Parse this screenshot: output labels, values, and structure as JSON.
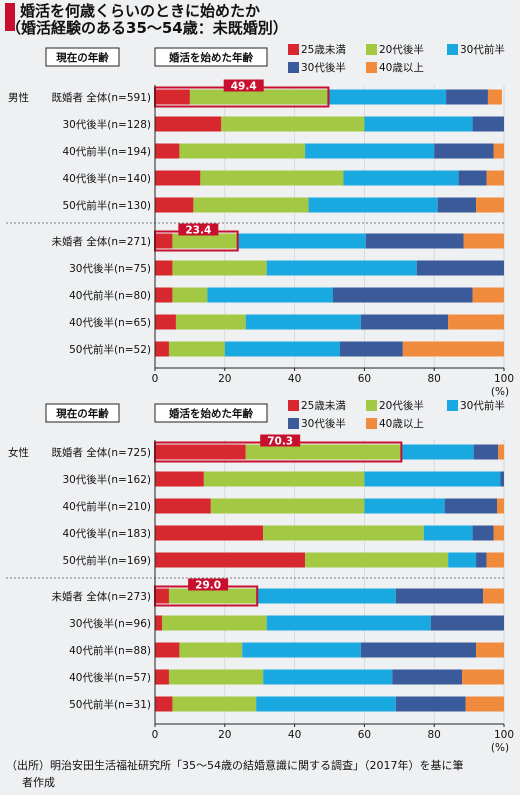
{
  "title_line1": "婚活を何歳くらいのときに始めたか",
  "title_line2": "（婚活経験のある35〜54歳：未既婚別）",
  "box_current_age": "現在の年齢",
  "box_start_age": "婚活を始めた年齢",
  "percent_unit": "(%)",
  "source_line1": "（出所）明治安田生活福祉研究所「35〜54歳の結婚意識に関する調査」（2017年）を基に筆",
  "source_line2": "者作成",
  "colors": {
    "title_marker": "#c8102e",
    "s25": "#d7282f",
    "s20s": "#a3c944",
    "s30early": "#1aa8e0",
    "s30late": "#3b5a9a",
    "s40": "#f08a3c",
    "callout_border": "#c8102e",
    "callout_fill": "#c8102e"
  },
  "chart_data": [
    {
      "type": "bar",
      "orientation": "horizontal",
      "stacked": true,
      "group_label": "男性",
      "xlim": [
        0,
        100
      ],
      "xticks": [
        0,
        20,
        40,
        60,
        80,
        100
      ],
      "xlabel": "(%)",
      "legend": [
        "25歳未満",
        "20代後半",
        "30代前半",
        "30代後半",
        "40歳以上"
      ],
      "rows": [
        {
          "label": "既婚者 全体(n=591)",
          "values": [
            10,
            39.4,
            34,
            12,
            4
          ],
          "callout": "49.4"
        },
        {
          "label": "30代後半(n=128)",
          "values": [
            19,
            41,
            31,
            9,
            0
          ]
        },
        {
          "label": "40代前半(n=194)",
          "values": [
            7,
            36,
            37,
            17,
            3
          ]
        },
        {
          "label": "40代後半(n=140)",
          "values": [
            13,
            41,
            33,
            8,
            5
          ]
        },
        {
          "label": "50代前半(n=130)",
          "values": [
            11,
            33,
            37,
            11,
            8
          ]
        },
        {
          "label": "未婚者 全体(n=271)",
          "values": [
            5,
            18.4,
            37,
            28,
            11.6
          ],
          "callout": "23.4"
        },
        {
          "label": "30代後半(n=75)",
          "values": [
            5,
            27,
            43,
            25,
            0
          ]
        },
        {
          "label": "40代前半(n=80)",
          "values": [
            5,
            10,
            36,
            40,
            9
          ]
        },
        {
          "label": "40代後半(n=65)",
          "values": [
            6,
            20,
            33,
            25,
            16
          ]
        },
        {
          "label": "50代前半(n=52)",
          "values": [
            4,
            16,
            33,
            18,
            29
          ]
        }
      ]
    },
    {
      "type": "bar",
      "orientation": "horizontal",
      "stacked": true,
      "group_label": "女性",
      "xlim": [
        0,
        100
      ],
      "xticks": [
        0,
        20,
        40,
        60,
        80,
        100
      ],
      "xlabel": "(%)",
      "legend": [
        "25歳未満",
        "20代後半",
        "30代前半",
        "30代後半",
        "40歳以上"
      ],
      "rows": [
        {
          "label": "既婚者 全体(n=725)",
          "values": [
            26,
            44.3,
            21,
            7,
            1.7
          ],
          "callout": "70.3"
        },
        {
          "label": "30代後半(n=162)",
          "values": [
            14,
            46,
            39,
            1,
            0
          ]
        },
        {
          "label": "40代前半(n=210)",
          "values": [
            16,
            44,
            23,
            15,
            2
          ]
        },
        {
          "label": "40代後半(n=183)",
          "values": [
            31,
            46,
            14,
            6,
            3
          ]
        },
        {
          "label": "50代前半(n=169)",
          "values": [
            43,
            41,
            8,
            3,
            5
          ]
        },
        {
          "label": "未婚者 全体(n=273)",
          "values": [
            4,
            25,
            40,
            25,
            6
          ],
          "callout": "29.0"
        },
        {
          "label": "30代後半(n=96)",
          "values": [
            2,
            30,
            47,
            21,
            0
          ]
        },
        {
          "label": "40代前半(n=88)",
          "values": [
            7,
            18,
            34,
            33,
            8
          ]
        },
        {
          "label": "40代後半(n=57)",
          "values": [
            4,
            27,
            37,
            20,
            12
          ]
        },
        {
          "label": "50代前半(n=31)",
          "values": [
            5,
            24,
            40,
            20,
            11
          ]
        }
      ]
    }
  ]
}
